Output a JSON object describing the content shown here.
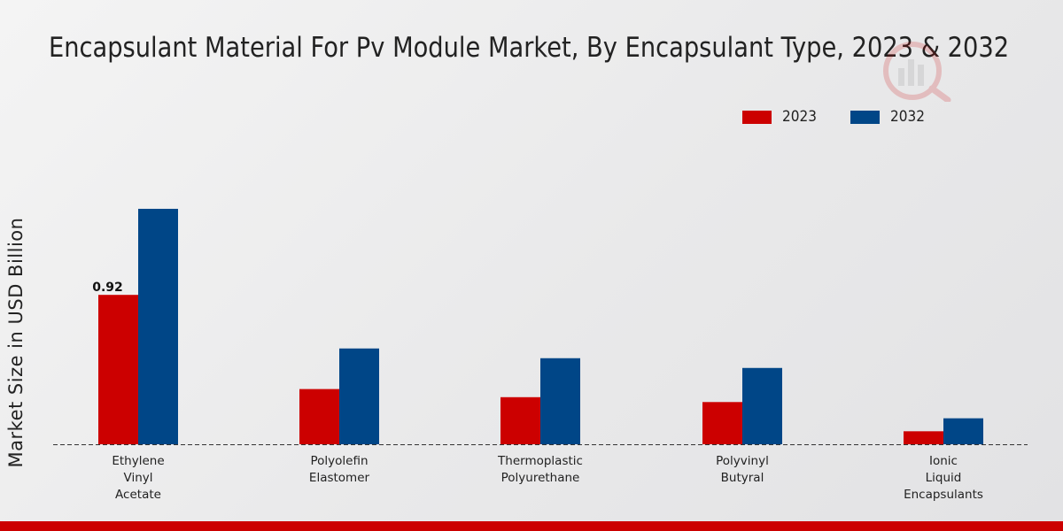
{
  "chart_data": {
    "type": "bar",
    "title": "Encapsulant Material For Pv Module Market, By Encapsulant Type, 2023 & 2032",
    "ylabel": "Market Size in USD Billion",
    "xlabel": "",
    "categories": [
      [
        "Ethylene",
        "Vinyl",
        "Acetate"
      ],
      [
        "Polyolefin",
        "Elastomer"
      ],
      [
        "Thermoplastic",
        "Polyurethane"
      ],
      [
        "Polyvinyl",
        "Butyral"
      ],
      [
        "Ionic",
        "Liquid",
        "Encapsulants"
      ]
    ],
    "series": [
      {
        "name": "2023",
        "color": "#cc0000",
        "values": [
          0.92,
          0.34,
          0.29,
          0.26,
          0.08
        ]
      },
      {
        "name": "2032",
        "color": "#004687",
        "values": [
          1.45,
          0.59,
          0.53,
          0.47,
          0.16
        ]
      }
    ],
    "data_labels": [
      {
        "series": 0,
        "index": 0,
        "text": "0.92"
      }
    ],
    "ylim": [
      0,
      2.3
    ],
    "grid": false,
    "legend_position": "top-right"
  }
}
